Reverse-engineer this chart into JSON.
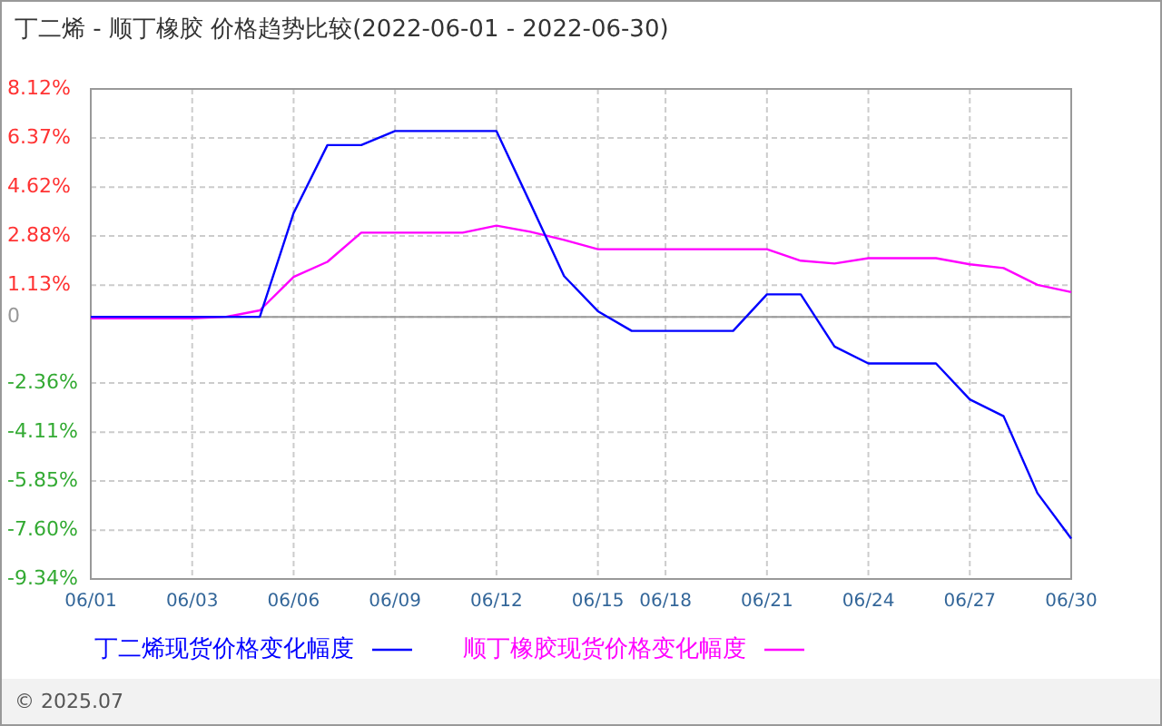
{
  "chart_data": {
    "type": "line",
    "title": "丁二烯 - 顺丁橡胶 价格趋势比较(2022-06-01 - 2022-06-30)",
    "categories": [
      "06/01",
      null,
      null,
      "06/03",
      null,
      null,
      "06/06",
      null,
      null,
      "06/09",
      null,
      null,
      "06/12",
      null,
      null,
      "06/15",
      null,
      "06/18",
      null,
      null,
      "06/21",
      null,
      null,
      "06/24",
      null,
      null,
      "06/27",
      null,
      null,
      "06/30"
    ],
    "series": [
      {
        "name": "丁二烯现货价格变化幅度",
        "color": "#0000ff",
        "values": [
          0,
          0,
          0,
          0,
          0,
          0,
          3.7,
          6.12,
          6.12,
          6.62,
          6.62,
          6.62,
          6.62,
          4.05,
          1.45,
          0.2,
          -0.5,
          -0.5,
          -0.5,
          -0.5,
          0.8,
          0.8,
          -1.06,
          -1.66,
          -1.66,
          -1.66,
          -2.94,
          -3.54,
          -6.28,
          -7.9
        ]
      },
      {
        "name": "顺丁橡胶现货价格变化幅度",
        "color": "#ff00ff",
        "values": [
          -0.05,
          -0.05,
          -0.05,
          -0.05,
          0,
          0.23,
          1.42,
          1.96,
          3.0,
          3.0,
          3.0,
          3.0,
          3.25,
          3.03,
          2.74,
          2.41,
          2.41,
          2.41,
          2.41,
          2.41,
          2.41,
          2.0,
          1.9,
          2.09,
          2.09,
          2.09,
          1.87,
          1.74,
          1.14,
          0.88
        ]
      }
    ],
    "ylim": [
      -9.34,
      8.12
    ],
    "yticks": [
      {
        "value": 8.12,
        "label": "8.12%"
      },
      {
        "value": 6.37,
        "label": "6.37%"
      },
      {
        "value": 4.62,
        "label": "4.62%"
      },
      {
        "value": 2.88,
        "label": "2.88%"
      },
      {
        "value": 1.13,
        "label": "1.13%"
      },
      0,
      {
        "value": -2.36,
        "label": "-2.36%"
      },
      {
        "value": -4.11,
        "label": "-4.11%"
      },
      {
        "value": -5.85,
        "label": "-5.85%"
      },
      {
        "value": -7.6,
        "label": "-7.60%"
      },
      {
        "value": -9.34,
        "label": "-9.34%"
      }
    ],
    "ref_lines": [
      {
        "axis": "y",
        "value": 0,
        "color": "#999999"
      }
    ],
    "grid": true,
    "legend": "bottom",
    "line_style": "solid",
    "annotations": [
      "© 2025.07"
    ]
  }
}
